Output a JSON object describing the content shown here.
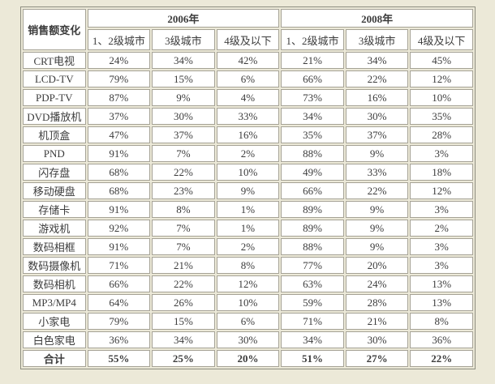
{
  "colors": {
    "page_background": "#ece9d8",
    "cell_background": "#ffffff",
    "border": "#a5a295",
    "text": "#3c3c3c",
    "header_text": "#1a1a1a",
    "total_value_text": "#2e2e68"
  },
  "table": {
    "corner_header": "销售额变化",
    "year_groups": [
      {
        "label": "2006年",
        "columns": [
          "1、2级城市",
          "3级城市",
          "4级及以下"
        ]
      },
      {
        "label": "2008年",
        "columns": [
          "1、2级城市",
          "3级城市",
          "4级及以下"
        ]
      }
    ],
    "rows": [
      {
        "label": "CRT电视",
        "values": [
          "24%",
          "34%",
          "42%",
          "21%",
          "34%",
          "45%"
        ]
      },
      {
        "label": "LCD-TV",
        "values": [
          "79%",
          "15%",
          "6%",
          "66%",
          "22%",
          "12%"
        ]
      },
      {
        "label": "PDP-TV",
        "values": [
          "87%",
          "9%",
          "4%",
          "73%",
          "16%",
          "10%"
        ]
      },
      {
        "label": "DVD播放机",
        "values": [
          "37%",
          "30%",
          "33%",
          "34%",
          "30%",
          "35%"
        ]
      },
      {
        "label": "机顶盒",
        "values": [
          "47%",
          "37%",
          "16%",
          "35%",
          "37%",
          "28%"
        ]
      },
      {
        "label": "PND",
        "values": [
          "91%",
          "7%",
          "2%",
          "88%",
          "9%",
          "3%"
        ]
      },
      {
        "label": "闪存盘",
        "values": [
          "68%",
          "22%",
          "10%",
          "49%",
          "33%",
          "18%"
        ]
      },
      {
        "label": "移动硬盘",
        "values": [
          "68%",
          "23%",
          "9%",
          "66%",
          "22%",
          "12%"
        ]
      },
      {
        "label": "存储卡",
        "values": [
          "91%",
          "8%",
          "1%",
          "89%",
          "9%",
          "3%"
        ]
      },
      {
        "label": "游戏机",
        "values": [
          "92%",
          "7%",
          "1%",
          "89%",
          "9%",
          "2%"
        ]
      },
      {
        "label": "数码相框",
        "values": [
          "91%",
          "7%",
          "2%",
          "88%",
          "9%",
          "3%"
        ]
      },
      {
        "label": "数码摄像机",
        "values": [
          "71%",
          "21%",
          "8%",
          "77%",
          "20%",
          "3%"
        ]
      },
      {
        "label": "数码相机",
        "values": [
          "66%",
          "22%",
          "12%",
          "63%",
          "24%",
          "13%"
        ]
      },
      {
        "label": "MP3/MP4",
        "values": [
          "64%",
          "26%",
          "10%",
          "59%",
          "28%",
          "13%"
        ]
      },
      {
        "label": "小家电",
        "values": [
          "79%",
          "15%",
          "6%",
          "71%",
          "21%",
          "8%"
        ]
      },
      {
        "label": "白色家电",
        "values": [
          "36%",
          "34%",
          "30%",
          "34%",
          "30%",
          "36%"
        ]
      },
      {
        "label": "合计",
        "values": [
          "55%",
          "25%",
          "20%",
          "51%",
          "27%",
          "22%"
        ],
        "is_total": true
      }
    ]
  },
  "chart_data": {
    "type": "table",
    "title": "销售额变化",
    "unit": "percent",
    "column_groups": [
      {
        "year": "2006年",
        "columns": [
          "1、2级城市",
          "3级城市",
          "4级及以下"
        ]
      },
      {
        "year": "2008年",
        "columns": [
          "1、2级城市",
          "3级城市",
          "4级及以下"
        ]
      }
    ],
    "rows": [
      {
        "label": "CRT电视",
        "y2006": [
          24,
          34,
          42
        ],
        "y2008": [
          21,
          34,
          45
        ]
      },
      {
        "label": "LCD-TV",
        "y2006": [
          79,
          15,
          6
        ],
        "y2008": [
          66,
          22,
          12
        ]
      },
      {
        "label": "PDP-TV",
        "y2006": [
          87,
          9,
          4
        ],
        "y2008": [
          73,
          16,
          10
        ]
      },
      {
        "label": "DVD播放机",
        "y2006": [
          37,
          30,
          33
        ],
        "y2008": [
          34,
          30,
          35
        ]
      },
      {
        "label": "机顶盒",
        "y2006": [
          47,
          37,
          16
        ],
        "y2008": [
          35,
          37,
          28
        ]
      },
      {
        "label": "PND",
        "y2006": [
          91,
          7,
          2
        ],
        "y2008": [
          88,
          9,
          3
        ]
      },
      {
        "label": "闪存盘",
        "y2006": [
          68,
          22,
          10
        ],
        "y2008": [
          49,
          33,
          18
        ]
      },
      {
        "label": "移动硬盘",
        "y2006": [
          68,
          23,
          9
        ],
        "y2008": [
          66,
          22,
          12
        ]
      },
      {
        "label": "存储卡",
        "y2006": [
          91,
          8,
          1
        ],
        "y2008": [
          89,
          9,
          3
        ]
      },
      {
        "label": "游戏机",
        "y2006": [
          92,
          7,
          1
        ],
        "y2008": [
          89,
          9,
          2
        ]
      },
      {
        "label": "数码相框",
        "y2006": [
          91,
          7,
          2
        ],
        "y2008": [
          88,
          9,
          3
        ]
      },
      {
        "label": "数码摄像机",
        "y2006": [
          71,
          21,
          8
        ],
        "y2008": [
          77,
          20,
          3
        ]
      },
      {
        "label": "数码相机",
        "y2006": [
          66,
          22,
          12
        ],
        "y2008": [
          63,
          24,
          13
        ]
      },
      {
        "label": "MP3/MP4",
        "y2006": [
          64,
          26,
          10
        ],
        "y2008": [
          59,
          28,
          13
        ]
      },
      {
        "label": "小家电",
        "y2006": [
          79,
          15,
          6
        ],
        "y2008": [
          71,
          21,
          8
        ]
      },
      {
        "label": "白色家电",
        "y2006": [
          36,
          34,
          30
        ],
        "y2008": [
          34,
          30,
          36
        ]
      },
      {
        "label": "合计",
        "y2006": [
          55,
          25,
          20
        ],
        "y2008": [
          51,
          27,
          22
        ]
      }
    ]
  }
}
